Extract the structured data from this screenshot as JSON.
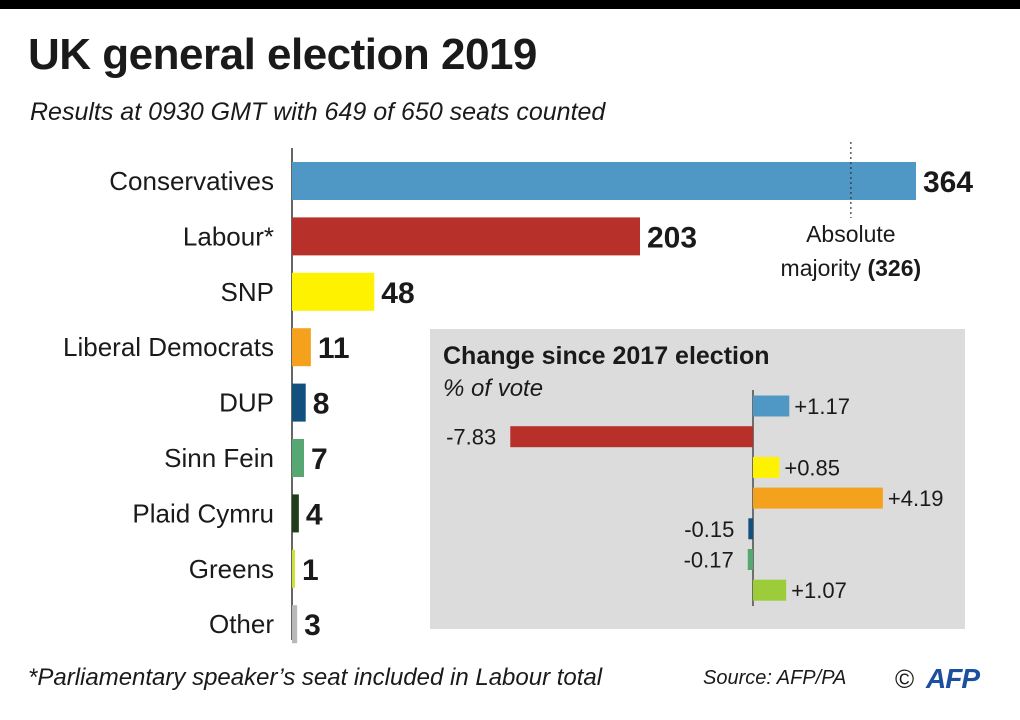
{
  "title": "UK general election 2019",
  "subtitle": "Results at 0930 GMT with 649 of 650 seats counted",
  "chart_data": [
    {
      "type": "bar",
      "orientation": "horizontal",
      "categories": [
        "Conservatives",
        "Labour*",
        "SNP",
        "Liberal Democrats",
        "DUP",
        "Sinn Fein",
        "Plaid Cymru",
        "Greens",
        "Other"
      ],
      "values": [
        364,
        203,
        48,
        11,
        8,
        7,
        4,
        1,
        3
      ],
      "value_labels": [
        "364",
        "203",
        "48",
        "11",
        "8",
        "7",
        "4",
        "1",
        "3"
      ],
      "colors": [
        "#4f97c4",
        "#b8302a",
        "#fff200",
        "#f4a21e",
        "#12507e",
        "#57a772",
        "#1f3d1b",
        "#cfe03a",
        "#b9b9b9"
      ],
      "xlim": [
        0,
        364
      ],
      "reference_line": {
        "value": 326,
        "label_line1": "Absolute",
        "label_line2": "majority",
        "label_value": "(326)"
      }
    },
    {
      "type": "bar",
      "orientation": "horizontal",
      "title": "Change since 2017 election",
      "subtitle": "% of vote",
      "values": [
        1.17,
        -7.83,
        0.85,
        4.19,
        -0.15,
        -0.17,
        1.07
      ],
      "value_labels": [
        "+1.17",
        "-7.83",
        "+0.85",
        "+4.19",
        "-0.15",
        "-0.17",
        "+1.07"
      ],
      "colors": [
        "#4f97c4",
        "#b8302a",
        "#fff200",
        "#f4a21e",
        "#12507e",
        "#57a772",
        "#9ccc3a"
      ]
    }
  ],
  "footnote": "*Parliamentary speaker’s seat included in Labour total",
  "source": "Source: AFP/PA",
  "copyright": "©",
  "logo": "AFP"
}
